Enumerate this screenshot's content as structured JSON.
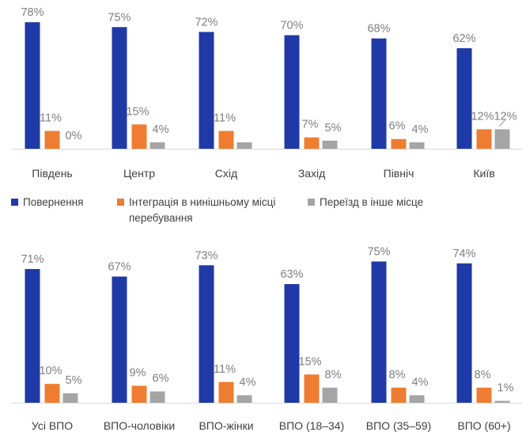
{
  "colors": {
    "return": "#1f3aa6",
    "integration": "#ee7d31",
    "relocation": "#a5a5a5",
    "label": "#7f7f7f",
    "text": "#404040",
    "axis": "#d9d9d9"
  },
  "legend": [
    {
      "label": "Повернення",
      "color": "#1f3aa6"
    },
    {
      "label": "Інтеграція в нинішньому місці",
      "label2": "перебування",
      "color": "#ee7d31"
    },
    {
      "label": "Переїзд в інше місце",
      "color": "#a5a5a5"
    }
  ],
  "chart_data": [
    {
      "type": "bar",
      "title": "",
      "xlabel": "",
      "ylabel": "",
      "categories": [
        "Південь",
        "Центр",
        "Схід",
        "Захід",
        "Північ",
        "Київ"
      ],
      "series": [
        {
          "name": "Повернення",
          "values": [
            78,
            75,
            72,
            70,
            68,
            62
          ],
          "labels": [
            "78%",
            "75%",
            "72%",
            "70%",
            "68%",
            "62%"
          ]
        },
        {
          "name": "Інтеграція в нинішньому місці перебування",
          "values": [
            11,
            15,
            11,
            7,
            6,
            12
          ],
          "labels": [
            "11%",
            "15%",
            "11%",
            "7%",
            "6%",
            "12%"
          ]
        },
        {
          "name": "Переїзд в інше місце",
          "values": [
            0,
            4,
            4,
            5,
            4,
            12
          ],
          "labels": [
            "0%",
            "4%",
            "",
            "5%",
            "4%",
            "12%"
          ]
        }
      ],
      "ylim": [
        0,
        100
      ],
      "grid": false,
      "legend": "bottom"
    },
    {
      "type": "bar",
      "title": "",
      "xlabel": "",
      "ylabel": "",
      "categories": [
        "Усі ВПО",
        "ВПО-чоловіки",
        "ВПО-жінки",
        "ВПО (18–34)",
        "ВПО (35–59)",
        "ВПО (60+)"
      ],
      "series": [
        {
          "name": "Повернення",
          "values": [
            71,
            67,
            73,
            63,
            75,
            74
          ],
          "labels": [
            "71%",
            "67%",
            "73%",
            "63%",
            "75%",
            "74%"
          ]
        },
        {
          "name": "Інтеграція в нинішньому місці перебування",
          "values": [
            10,
            9,
            11,
            15,
            8,
            8
          ],
          "labels": [
            "10%",
            "9%",
            "11%",
            "15%",
            "8%",
            "8%"
          ]
        },
        {
          "name": "Переїзд в інше місце",
          "values": [
            5,
            6,
            4,
            8,
            4,
            1
          ],
          "labels": [
            "5%",
            "6%",
            "4%",
            "8%",
            "4%",
            "1%"
          ]
        }
      ],
      "ylim": [
        0,
        100
      ],
      "grid": false,
      "legend": "none"
    }
  ]
}
